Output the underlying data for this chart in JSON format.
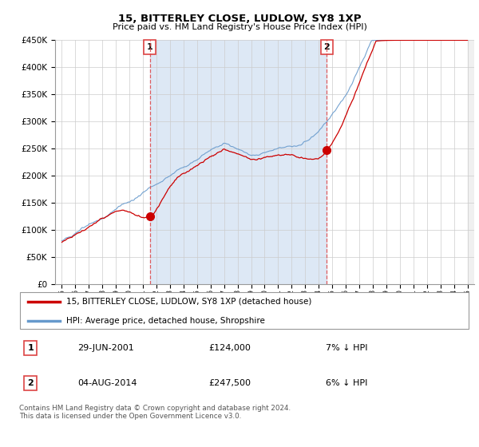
{
  "title": "15, BITTERLEY CLOSE, LUDLOW, SY8 1XP",
  "subtitle": "Price paid vs. HM Land Registry's House Price Index (HPI)",
  "ylim": [
    0,
    450000
  ],
  "yticks": [
    0,
    50000,
    100000,
    150000,
    200000,
    250000,
    300000,
    350000,
    400000,
    450000
  ],
  "transaction1": {
    "date_label": "29-JUN-2001",
    "price": 124000,
    "note": "7% ↓ HPI",
    "marker_x": 2001.5
  },
  "transaction2": {
    "date_label": "04-AUG-2014",
    "price": 247500,
    "note": "6% ↓ HPI",
    "marker_x": 2014.6
  },
  "legend_line1": "15, BITTERLEY CLOSE, LUDLOW, SY8 1XP (detached house)",
  "legend_line2": "HPI: Average price, detached house, Shropshire",
  "footer": "Contains HM Land Registry data © Crown copyright and database right 2024.\nThis data is licensed under the Open Government Licence v3.0.",
  "hpi_color": "#6699cc",
  "price_color": "#cc0000",
  "vline_color": "#dd4444",
  "background_color": "#ffffff",
  "grid_color": "#cccccc",
  "fill_color": "#dde8f5",
  "xmin": 1994.5,
  "xmax": 2025.5
}
